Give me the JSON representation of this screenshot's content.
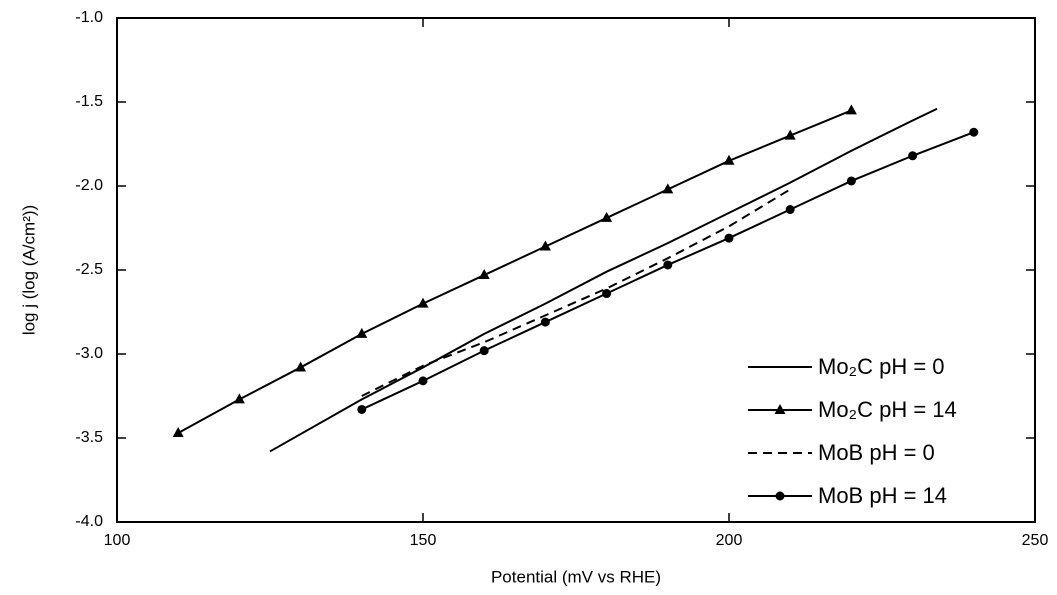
{
  "chart_data": {
    "type": "line",
    "xlabel": "Potential (mV vs RHE)",
    "ylabel": "log j (log (A/cm²))",
    "xlim": [
      100,
      250
    ],
    "xticks": [
      100,
      150,
      200,
      250
    ],
    "ylim": [
      -4.0,
      -1.0
    ],
    "yticks": [
      {
        "value": -1.0,
        "label": "-1.0"
      },
      -1.5,
      {
        "value": -2.0,
        "label": "-2.0"
      },
      -2.5,
      {
        "value": -3.0,
        "label": "-3.0"
      },
      -3.5,
      {
        "value": -4.0,
        "label": "-4.0"
      }
    ],
    "legend": "lower right",
    "series": [
      {
        "name": "Mo₂C pH = 0",
        "color": "#000000",
        "dash": false,
        "marker": null,
        "x": [
          125,
          140,
          150,
          160,
          170,
          180,
          190,
          200,
          210,
          220,
          230,
          234
        ],
        "values": [
          -3.58,
          -3.27,
          -3.08,
          -2.88,
          -2.7,
          -2.51,
          -2.34,
          -2.16,
          -1.98,
          -1.79,
          -1.61,
          -1.54
        ]
      },
      {
        "name": "Mo₂C pH = 14",
        "color": "#000000",
        "dash": false,
        "marker": "triangle",
        "x": [
          110,
          120,
          130,
          140,
          150,
          160,
          170,
          180,
          190,
          200,
          210,
          220
        ],
        "values": [
          -3.47,
          -3.27,
          -3.08,
          -2.88,
          -2.7,
          -2.53,
          -2.36,
          -2.19,
          -2.02,
          -1.85,
          -1.7,
          -1.55
        ]
      },
      {
        "name": "MoB pH = 0",
        "color": "#000000",
        "dash": true,
        "marker": null,
        "x": [
          140,
          150,
          160,
          170,
          180,
          190,
          200,
          210
        ],
        "values": [
          -3.25,
          -3.07,
          -2.93,
          -2.77,
          -2.61,
          -2.43,
          -2.24,
          -2.02
        ]
      },
      {
        "name": "MoB pH = 14",
        "color": "#000000",
        "dash": false,
        "marker": "circle",
        "x": [
          140,
          150,
          160,
          170,
          180,
          190,
          200,
          210,
          220,
          230,
          240
        ],
        "values": [
          -3.33,
          -3.16,
          -2.98,
          -2.81,
          -2.64,
          -2.47,
          -2.31,
          -2.14,
          -1.97,
          -1.82,
          -1.68
        ]
      }
    ]
  }
}
